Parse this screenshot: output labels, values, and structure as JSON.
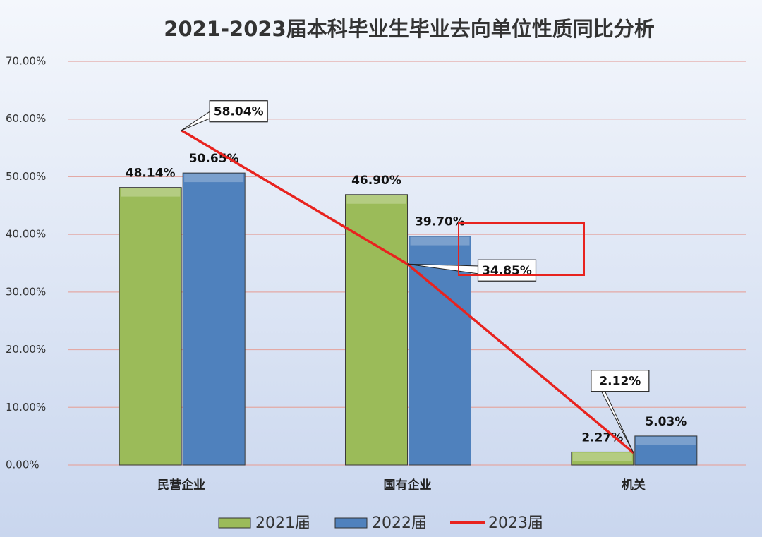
{
  "chart_data": {
    "type": "bar",
    "title": "2021-2023届本科毕业生毕业去向单位性质同比分析",
    "categories": [
      "民营企业",
      "国有企业",
      "机关"
    ],
    "series": [
      {
        "name": "2021届",
        "type": "bar",
        "color": "#9bbb59",
        "values": [
          48.14,
          46.9,
          2.27
        ],
        "value_labels": [
          "48.14%",
          "46.90%",
          "2.27%"
        ]
      },
      {
        "name": "2022届",
        "type": "bar",
        "color": "#4f81bd",
        "values": [
          50.65,
          39.7,
          5.03
        ],
        "value_labels": [
          "50.65%",
          "39.70%",
          "5.03%"
        ]
      },
      {
        "name": "2023届",
        "type": "line",
        "color": "#e8231f",
        "values": [
          58.04,
          34.85,
          2.12
        ],
        "value_labels": [
          "58.04%",
          "34.85%",
          "2.12%"
        ]
      }
    ],
    "ylim": [
      0,
      70
    ],
    "yticks": [
      {
        "value": 0,
        "label": "0.00%"
      },
      {
        "value": 10,
        "label": "10.00%"
      },
      {
        "value": 20,
        "label": "20.00%"
      },
      {
        "value": 30,
        "label": "30.00%"
      },
      {
        "value": 40,
        "label": "40.00%"
      },
      {
        "value": 50,
        "label": "50.00%"
      },
      {
        "value": 60,
        "label": "60.00%"
      },
      {
        "value": 70,
        "label": "70.00%"
      }
    ],
    "grid": true,
    "legend": "bottom"
  }
}
